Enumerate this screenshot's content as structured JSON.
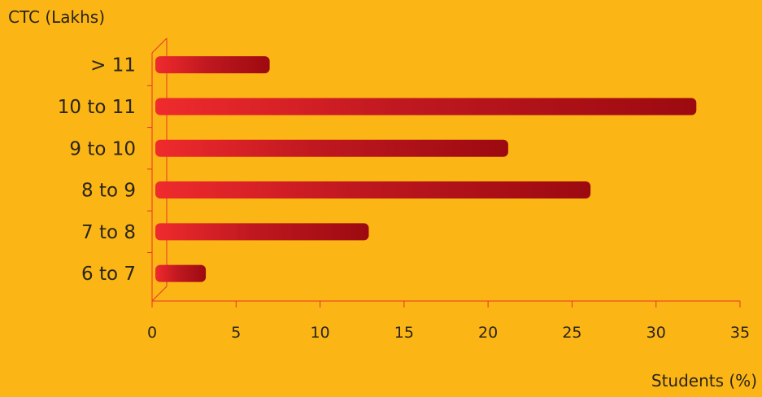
{
  "chart_data": {
    "type": "bar",
    "orientation": "horizontal",
    "title": "",
    "ylabel": "CTC (Lakhs)",
    "xlabel": "Students (%)",
    "categories": [
      "> 11",
      "10 to 11",
      "9 to 10",
      "8 to 9",
      "7 to 8",
      "6 to 7"
    ],
    "values": [
      7.0,
      32.4,
      21.2,
      26.1,
      12.9,
      3.2
    ],
    "xlim": [
      0,
      35
    ],
    "xticks": [
      "0",
      "5",
      "10",
      "15",
      "20",
      "25",
      "30",
      "35"
    ],
    "grid": false,
    "legend": "none",
    "colors": {
      "background": "#fbb616",
      "bar_light": "#ef2b2d",
      "bar_dark": "#9c0a10",
      "axis": "#e8322a",
      "text": "#2b2418"
    }
  }
}
